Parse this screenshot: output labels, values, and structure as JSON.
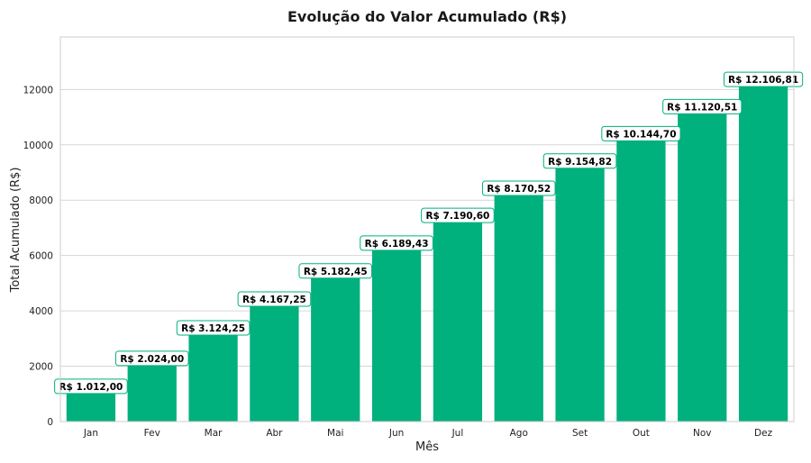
{
  "chart_data": {
    "type": "bar",
    "title": "Evolução do Valor Acumulado (R$)",
    "xlabel": "Mês",
    "ylabel": "Total Acumulado (R$)",
    "categories": [
      "Jan",
      "Fev",
      "Mar",
      "Abr",
      "Mai",
      "Jun",
      "Jul",
      "Ago",
      "Set",
      "Out",
      "Nov",
      "Dez"
    ],
    "values": [
      1012.0,
      2024.0,
      3124.25,
      4167.25,
      5182.45,
      6189.43,
      7190.6,
      8170.52,
      9154.82,
      10144.7,
      11120.51,
      12106.81
    ],
    "data_labels": [
      "R$ 1.012,00",
      "R$ 2.024,00",
      "R$ 3.124,25",
      "R$ 4.167,25",
      "R$ 5.182,45",
      "R$ 6.189,43",
      "R$ 7.190,60",
      "R$ 8.170,52",
      "R$ 9.154,82",
      "R$ 10.144,70",
      "R$ 11.120,51",
      "R$ 12.106,81"
    ],
    "ylim": [
      0,
      13900
    ],
    "yticks": [
      0,
      2000,
      4000,
      6000,
      8000,
      10000,
      12000
    ],
    "grid": true,
    "colors": {
      "bar": "#00b07d",
      "label_border": "#00b07d"
    }
  }
}
